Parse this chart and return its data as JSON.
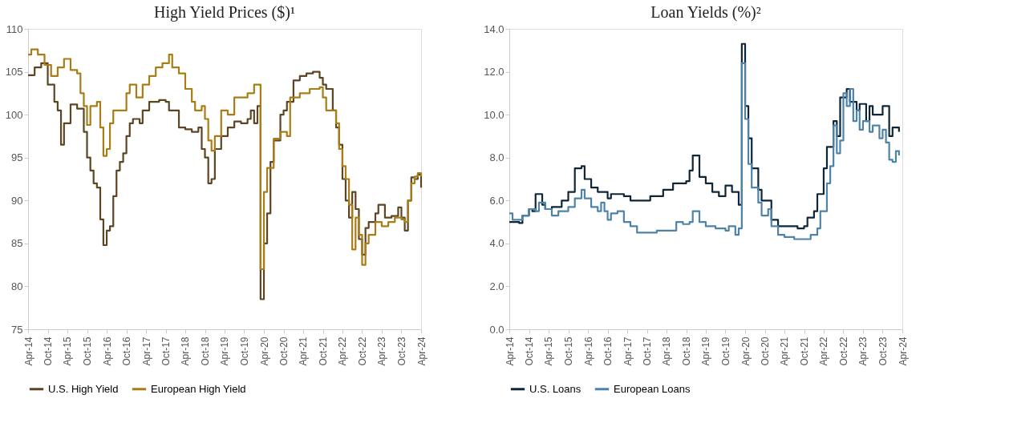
{
  "chart_data": [
    {
      "type": "step",
      "title": "High Yield Prices ($)¹",
      "xlim": [
        "2014-04",
        "2024-04"
      ],
      "xticks": [
        {
          "value": "2014-04",
          "label": "Apr-14"
        },
        {
          "value": "2014-10",
          "label": "Oct-14"
        },
        {
          "value": "2015-04",
          "label": "Apr-15"
        },
        {
          "value": "2015-10",
          "label": "Oct-15"
        },
        {
          "value": "2016-04",
          "label": "Apr-16"
        },
        {
          "value": "2016-10",
          "label": "Oct-16"
        },
        {
          "value": "2017-04",
          "label": "Apr-17"
        },
        {
          "value": "2017-10",
          "label": "Oct-17"
        },
        {
          "value": "2018-04",
          "label": "Apr-18"
        },
        {
          "value": "2018-10",
          "label": "Oct-18"
        },
        {
          "value": "2019-04",
          "label": "Apr-19"
        },
        {
          "value": "2019-10",
          "label": "Oct-19"
        },
        {
          "value": "2020-04",
          "label": "Apr-20"
        },
        {
          "value": "2020-10",
          "label": "Oct-20"
        },
        {
          "value": "2021-04",
          "label": "Apr-21"
        },
        {
          "value": "2021-10",
          "label": "Oct-21"
        },
        {
          "value": "2022-04",
          "label": "Apr-22"
        },
        {
          "value": "2022-10",
          "label": "Oct-22"
        },
        {
          "value": "2023-04",
          "label": "Apr-23"
        },
        {
          "value": "2023-10",
          "label": "Oct-23"
        },
        {
          "value": "2024-04",
          "label": "Apr-24"
        }
      ],
      "ylim": [
        75,
        110
      ],
      "yticks": [
        75,
        80,
        85,
        90,
        95,
        100,
        105,
        110
      ],
      "grid": false,
      "legend": "bottom",
      "series": [
        {
          "name": "U.S. High Yield",
          "color": "#5b4522",
          "x": [
            "2014-04",
            "2014-06",
            "2014-08",
            "2014-10",
            "2014-12",
            "2015-01",
            "2015-02",
            "2015-03",
            "2015-05",
            "2015-07",
            "2015-09",
            "2015-10",
            "2015-11",
            "2015-12",
            "2016-01",
            "2016-02",
            "2016-03",
            "2016-04",
            "2016-05",
            "2016-06",
            "2016-07",
            "2016-08",
            "2016-09",
            "2016-10",
            "2016-11",
            "2016-12",
            "2017-02",
            "2017-03",
            "2017-05",
            "2017-08",
            "2017-10",
            "2017-11",
            "2018-01",
            "2018-02",
            "2018-04",
            "2018-06",
            "2018-08",
            "2018-09",
            "2018-10",
            "2018-11",
            "2018-12",
            "2019-01",
            "2019-03",
            "2019-05",
            "2019-07",
            "2019-09",
            "2019-11",
            "2019-12",
            "2020-01",
            "2020-02",
            "2020-03",
            "2020-04",
            "2020-05",
            "2020-06",
            "2020-07",
            "2020-09",
            "2020-10",
            "2020-11",
            "2021-01",
            "2021-03",
            "2021-05",
            "2021-07",
            "2021-09",
            "2021-10",
            "2021-11",
            "2022-01",
            "2022-02",
            "2022-03",
            "2022-04",
            "2022-05",
            "2022-06",
            "2022-07",
            "2022-08",
            "2022-09",
            "2022-10",
            "2022-11",
            "2022-12",
            "2023-02",
            "2023-03",
            "2023-05",
            "2023-07",
            "2023-09",
            "2023-10",
            "2023-11",
            "2023-12",
            "2024-01",
            "2024-02",
            "2024-03",
            "2024-04"
          ],
          "values": [
            104.6,
            105.5,
            106,
            103.5,
            101.5,
            100.5,
            96.5,
            99,
            101.2,
            100.7,
            98,
            95,
            93.5,
            92,
            91.5,
            87.8,
            84.8,
            86.5,
            87,
            90.5,
            93.5,
            94.5,
            95.5,
            97.5,
            99,
            99.5,
            99,
            100.5,
            101.5,
            101.7,
            101.5,
            100.5,
            100.5,
            98.5,
            98.3,
            98,
            98.5,
            96,
            95,
            92,
            92.5,
            96,
            97.5,
            98.5,
            99.2,
            99,
            99.5,
            100.5,
            99,
            101,
            78.5,
            85,
            88.5,
            94.5,
            97,
            100,
            100.5,
            101.5,
            104,
            104.5,
            104.8,
            105,
            104.3,
            103.5,
            103,
            100.5,
            98.5,
            96.5,
            92.5,
            90,
            88,
            91,
            89,
            85.5,
            83.7,
            86.8,
            87.5,
            88.5,
            89.5,
            88,
            88.2,
            89.2,
            88,
            86.5,
            90,
            92.7,
            92.5,
            93,
            91.5
          ]
        },
        {
          "name": "European High Yield",
          "color": "#a87d16",
          "x": [
            "2014-04",
            "2014-05",
            "2014-07",
            "2014-09",
            "2014-11",
            "2015-01",
            "2015-03",
            "2015-05",
            "2015-07",
            "2015-08",
            "2015-09",
            "2015-10",
            "2015-11",
            "2016-01",
            "2016-02",
            "2016-03",
            "2016-04",
            "2016-05",
            "2016-06",
            "2016-08",
            "2016-10",
            "2016-11",
            "2017-01",
            "2017-03",
            "2017-05",
            "2017-07",
            "2017-09",
            "2017-11",
            "2017-12",
            "2018-02",
            "2018-04",
            "2018-06",
            "2018-07",
            "2018-09",
            "2018-10",
            "2018-11",
            "2018-12",
            "2019-01",
            "2019-03",
            "2019-05",
            "2019-07",
            "2019-09",
            "2019-11",
            "2020-01",
            "2020-02",
            "2020-03",
            "2020-04",
            "2020-05",
            "2020-07",
            "2020-09",
            "2020-11",
            "2020-12",
            "2021-03",
            "2021-06",
            "2021-09",
            "2021-10",
            "2021-11",
            "2022-01",
            "2022-02",
            "2022-03",
            "2022-04",
            "2022-05",
            "2022-06",
            "2022-07",
            "2022-08",
            "2022-09",
            "2022-10",
            "2022-11",
            "2022-12",
            "2023-02",
            "2023-04",
            "2023-06",
            "2023-08",
            "2023-10",
            "2023-11",
            "2023-12",
            "2024-01",
            "2024-02",
            "2024-03",
            "2024-04"
          ],
          "values": [
            107,
            107.6,
            107,
            105.8,
            104.5,
            105.5,
            106.5,
            105.2,
            104.8,
            102.5,
            101,
            98.8,
            101,
            101.5,
            98.5,
            95.2,
            96,
            99,
            100.5,
            100.5,
            102.5,
            103.5,
            102,
            103.5,
            104.5,
            105.5,
            106,
            107,
            105.5,
            104.8,
            103,
            101.5,
            100.5,
            101,
            99.5,
            97,
            95.8,
            97.5,
            100.5,
            100,
            102,
            102,
            102.5,
            103.5,
            103.5,
            82,
            91,
            93.8,
            97.2,
            98,
            97.5,
            102,
            102.5,
            103,
            103.2,
            102,
            100.5,
            100.5,
            99,
            96,
            94,
            92.5,
            89.5,
            84.3,
            88,
            86,
            82.5,
            85,
            86,
            87.5,
            87,
            87.5,
            88,
            87.8,
            87.5,
            90,
            92,
            92.8,
            93.2,
            92.8
          ]
        }
      ]
    },
    {
      "type": "step",
      "title": "Loan Yields (%)²",
      "xlim": [
        "2014-04",
        "2024-04"
      ],
      "xticks": [
        {
          "value": "2014-04",
          "label": "Apr-14"
        },
        {
          "value": "2014-10",
          "label": "Oct-14"
        },
        {
          "value": "2015-04",
          "label": "Apr-15"
        },
        {
          "value": "2015-10",
          "label": "Oct-15"
        },
        {
          "value": "2016-04",
          "label": "Apr-16"
        },
        {
          "value": "2016-10",
          "label": "Oct-16"
        },
        {
          "value": "2017-04",
          "label": "Apr-17"
        },
        {
          "value": "2017-10",
          "label": "Oct-17"
        },
        {
          "value": "2018-04",
          "label": "Apr-18"
        },
        {
          "value": "2018-10",
          "label": "Oct-18"
        },
        {
          "value": "2019-04",
          "label": "Apr-19"
        },
        {
          "value": "2019-10",
          "label": "Oct-19"
        },
        {
          "value": "2020-04",
          "label": "Apr-20"
        },
        {
          "value": "2020-10",
          "label": "Oct-20"
        },
        {
          "value": "2021-04",
          "label": "Apr-21"
        },
        {
          "value": "2021-10",
          "label": "Oct-21"
        },
        {
          "value": "2022-04",
          "label": "Apr-22"
        },
        {
          "value": "2022-10",
          "label": "Oct-22"
        },
        {
          "value": "2023-04",
          "label": "Apr-23"
        },
        {
          "value": "2023-10",
          "label": "Oct-23"
        },
        {
          "value": "2024-04",
          "label": "Apr-24"
        }
      ],
      "ylim": [
        0,
        14
      ],
      "yticks": [
        {
          "value": 0,
          "label": "0.0"
        },
        {
          "value": 2,
          "label": "2.0"
        },
        {
          "value": 4,
          "label": "4.0"
        },
        {
          "value": 6,
          "label": "6.0"
        },
        {
          "value": 8,
          "label": "8.0"
        },
        {
          "value": 10,
          "label": "10.0"
        },
        {
          "value": 12,
          "label": "12.0"
        },
        {
          "value": 14,
          "label": "14.0"
        }
      ],
      "grid": false,
      "legend": "bottom",
      "series": [
        {
          "name": "U.S. Loans",
          "color": "#0f2638",
          "x": [
            "2014-04",
            "2014-07",
            "2014-08",
            "2014-10",
            "2014-11",
            "2014-12",
            "2015-02",
            "2015-03",
            "2015-05",
            "2015-08",
            "2015-10",
            "2015-12",
            "2016-02",
            "2016-03",
            "2016-05",
            "2016-07",
            "2016-10",
            "2016-11",
            "2017-03",
            "2017-05",
            "2017-08",
            "2017-11",
            "2018-03",
            "2018-06",
            "2018-10",
            "2018-11",
            "2018-12",
            "2019-02",
            "2019-04",
            "2019-06",
            "2019-08",
            "2019-10",
            "2019-12",
            "2020-02",
            "2020-03",
            "2020-04",
            "2020-05",
            "2020-06",
            "2020-08",
            "2020-09",
            "2020-11",
            "2020-12",
            "2021-02",
            "2021-04",
            "2021-08",
            "2021-10",
            "2021-11",
            "2022-01",
            "2022-02",
            "2022-04",
            "2022-05",
            "2022-07",
            "2022-08",
            "2022-09",
            "2022-11",
            "2022-12",
            "2023-02",
            "2023-03",
            "2023-05",
            "2023-06",
            "2023-07",
            "2023-10",
            "2023-12",
            "2024-01",
            "2024-03"
          ],
          "values": [
            5.0,
            4.95,
            5.3,
            5.6,
            5.5,
            6.3,
            5.8,
            5.6,
            5.7,
            6.0,
            6.4,
            7.5,
            7.6,
            7.0,
            6.6,
            6.4,
            6.1,
            6.3,
            6.2,
            6.0,
            6.0,
            6.2,
            6.5,
            6.8,
            6.9,
            7.4,
            8.1,
            7.1,
            6.8,
            6.4,
            6.2,
            6.7,
            6.4,
            5.8,
            13.3,
            10.4,
            8.9,
            7.5,
            6.5,
            6.0,
            6.0,
            5.1,
            4.8,
            4.8,
            4.7,
            4.8,
            5.2,
            5.5,
            6.3,
            7.5,
            8.5,
            9.7,
            9.0,
            10.8,
            11.2,
            10.6,
            10.2,
            10.5,
            9.7,
            10.4,
            10.0,
            10.4,
            9.0,
            9.4,
            9.2
          ]
        },
        {
          "name": "European Loans",
          "color": "#4e83a8",
          "x": [
            "2014-04",
            "2014-05",
            "2014-08",
            "2014-10",
            "2014-12",
            "2015-01",
            "2015-03",
            "2015-05",
            "2015-07",
            "2015-10",
            "2015-12",
            "2016-02",
            "2016-03",
            "2016-05",
            "2016-07",
            "2016-08",
            "2016-09",
            "2016-10",
            "2016-11",
            "2017-01",
            "2017-03",
            "2017-05",
            "2017-07",
            "2017-10",
            "2018-01",
            "2018-05",
            "2018-07",
            "2018-09",
            "2018-11",
            "2018-12",
            "2019-02",
            "2019-04",
            "2019-07",
            "2019-10",
            "2019-11",
            "2020-01",
            "2020-02",
            "2020-03",
            "2020-04",
            "2020-05",
            "2020-06",
            "2020-08",
            "2020-09",
            "2020-11",
            "2020-12",
            "2021-02",
            "2021-04",
            "2021-07",
            "2021-10",
            "2021-12",
            "2022-02",
            "2022-03",
            "2022-05",
            "2022-06",
            "2022-07",
            "2022-08",
            "2022-09",
            "2022-10",
            "2022-11",
            "2022-12",
            "2023-01",
            "2023-02",
            "2023-03",
            "2023-04",
            "2023-06",
            "2023-07",
            "2023-09",
            "2023-10",
            "2023-11",
            "2023-12",
            "2024-01",
            "2024-02",
            "2024-03"
          ],
          "values": [
            5.4,
            5.1,
            5.3,
            5.6,
            5.5,
            5.9,
            5.6,
            5.3,
            5.5,
            5.7,
            6.1,
            6.5,
            6.1,
            5.7,
            5.5,
            5.9,
            5.5,
            5.1,
            5.4,
            5.5,
            5.0,
            4.8,
            4.5,
            4.5,
            4.6,
            4.6,
            5.0,
            4.9,
            5.0,
            5.5,
            5.0,
            4.8,
            4.7,
            4.6,
            4.8,
            4.4,
            4.7,
            12.4,
            9.8,
            7.7,
            6.6,
            5.9,
            5.3,
            5.6,
            4.8,
            4.4,
            4.3,
            4.2,
            4.2,
            4.4,
            4.7,
            5.5,
            6.8,
            7.6,
            9.5,
            8.2,
            8.8,
            11.0,
            10.4,
            11.2,
            9.7,
            10.2,
            9.3,
            9.7,
            9.2,
            9.5,
            8.9,
            9.3,
            8.7,
            7.9,
            7.8,
            8.3,
            8.1
          ]
        }
      ]
    }
  ]
}
